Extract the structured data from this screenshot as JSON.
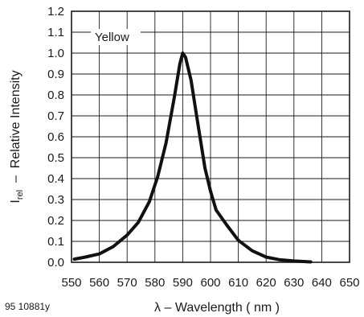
{
  "chart_data": {
    "type": "line",
    "title": "",
    "xlabel": "λ – Wavelength ( nm )",
    "ylabel_main": "I",
    "ylabel_sub": "rel",
    "ylabel_rest": "  –  Relative Intensity",
    "xlim": [
      550,
      650
    ],
    "ylim": [
      0,
      1.2
    ],
    "x_ticks": [
      550,
      560,
      570,
      580,
      590,
      600,
      610,
      620,
      630,
      640,
      650
    ],
    "x_tick_labels": [
      "550",
      "560",
      "570",
      "580",
      "590",
      "600",
      "610",
      "620",
      "630",
      "640",
      "650"
    ],
    "y_ticks": [
      0,
      0.1,
      0.2,
      0.3,
      0.4,
      0.5,
      0.6,
      0.7,
      0.8,
      0.9,
      1.0,
      1.1,
      1.2
    ],
    "y_tick_labels": [
      "0.0",
      "0.1",
      "0.2",
      "0.3",
      "0.4",
      "0.5",
      "0.6",
      "0.7",
      "0.8",
      "0.9",
      "1.0",
      "1.1",
      "1.2"
    ],
    "grid": true,
    "annotation": "Yellow",
    "series": [
      {
        "color": "#111111",
        "x": [
          551,
          555,
          560,
          565,
          570,
          574,
          578,
          581,
          584,
          587,
          589,
          590,
          591,
          593,
          595,
          598,
          600,
          602,
          606,
          610,
          615,
          620,
          625,
          630,
          636
        ],
        "y": [
          0.015,
          0.025,
          0.04,
          0.075,
          0.13,
          0.19,
          0.29,
          0.41,
          0.57,
          0.79,
          0.95,
          1.0,
          0.98,
          0.87,
          0.7,
          0.45,
          0.34,
          0.25,
          0.175,
          0.105,
          0.055,
          0.025,
          0.012,
          0.006,
          0.002
        ]
      }
    ]
  },
  "figure_id": "95 10881y"
}
